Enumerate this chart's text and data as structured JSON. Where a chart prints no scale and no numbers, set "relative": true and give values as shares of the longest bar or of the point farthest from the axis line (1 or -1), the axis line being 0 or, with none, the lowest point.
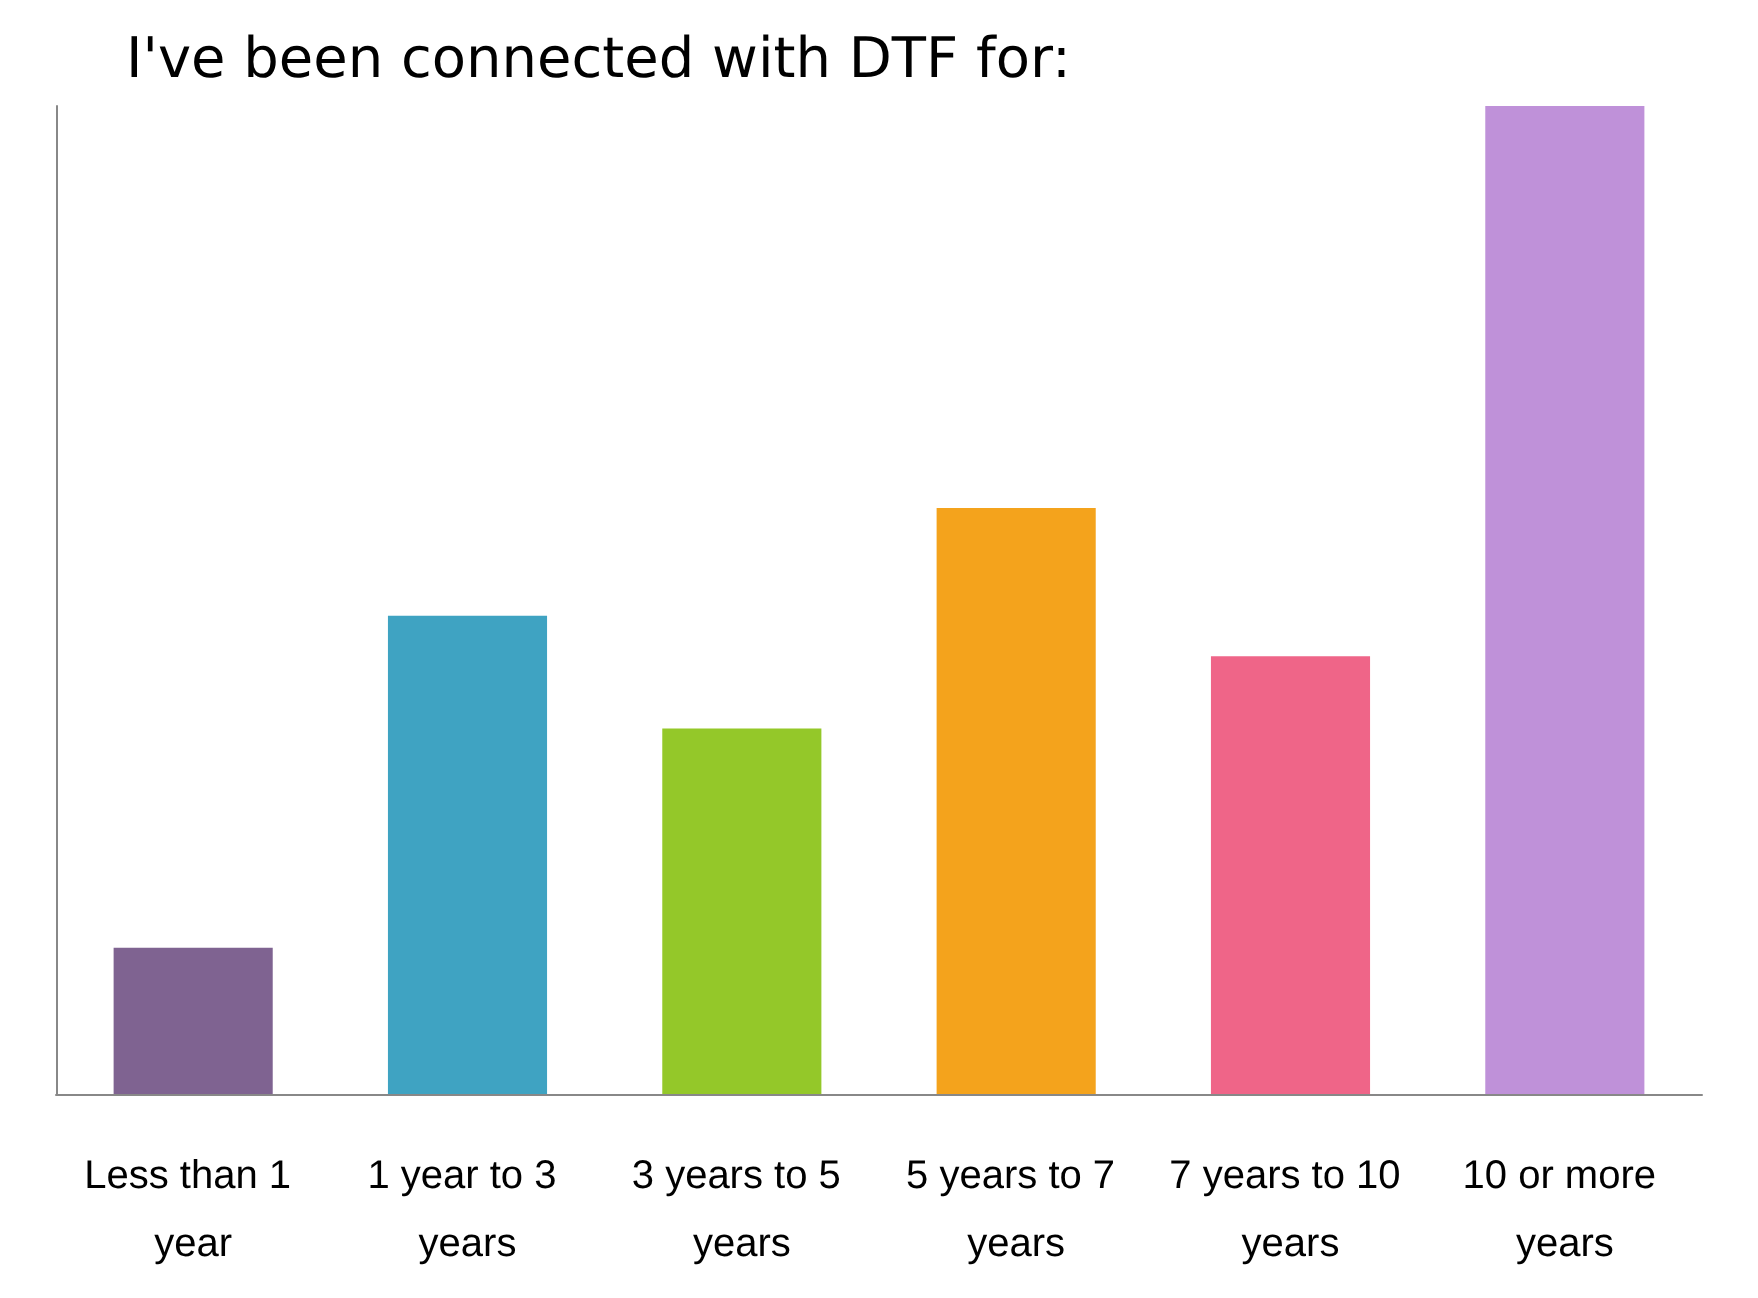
{
  "chart_data": {
    "type": "bar",
    "title": "I've been connected with DTF for:",
    "relative": true,
    "categories": [
      "Less than 1 year",
      "1 year to 3 years",
      "3 years to 5 years",
      "5 years to 7 years",
      "7 years to 10 years",
      "10 or more years"
    ],
    "values": [
      0.148,
      0.484,
      0.37,
      0.593,
      0.443,
      1
    ],
    "colors": [
      "#7f6391",
      "#3fa3c2",
      "#94c829",
      "#f4a31c",
      "#ef6588",
      "#bf91d9"
    ],
    "data_labels": false
  }
}
